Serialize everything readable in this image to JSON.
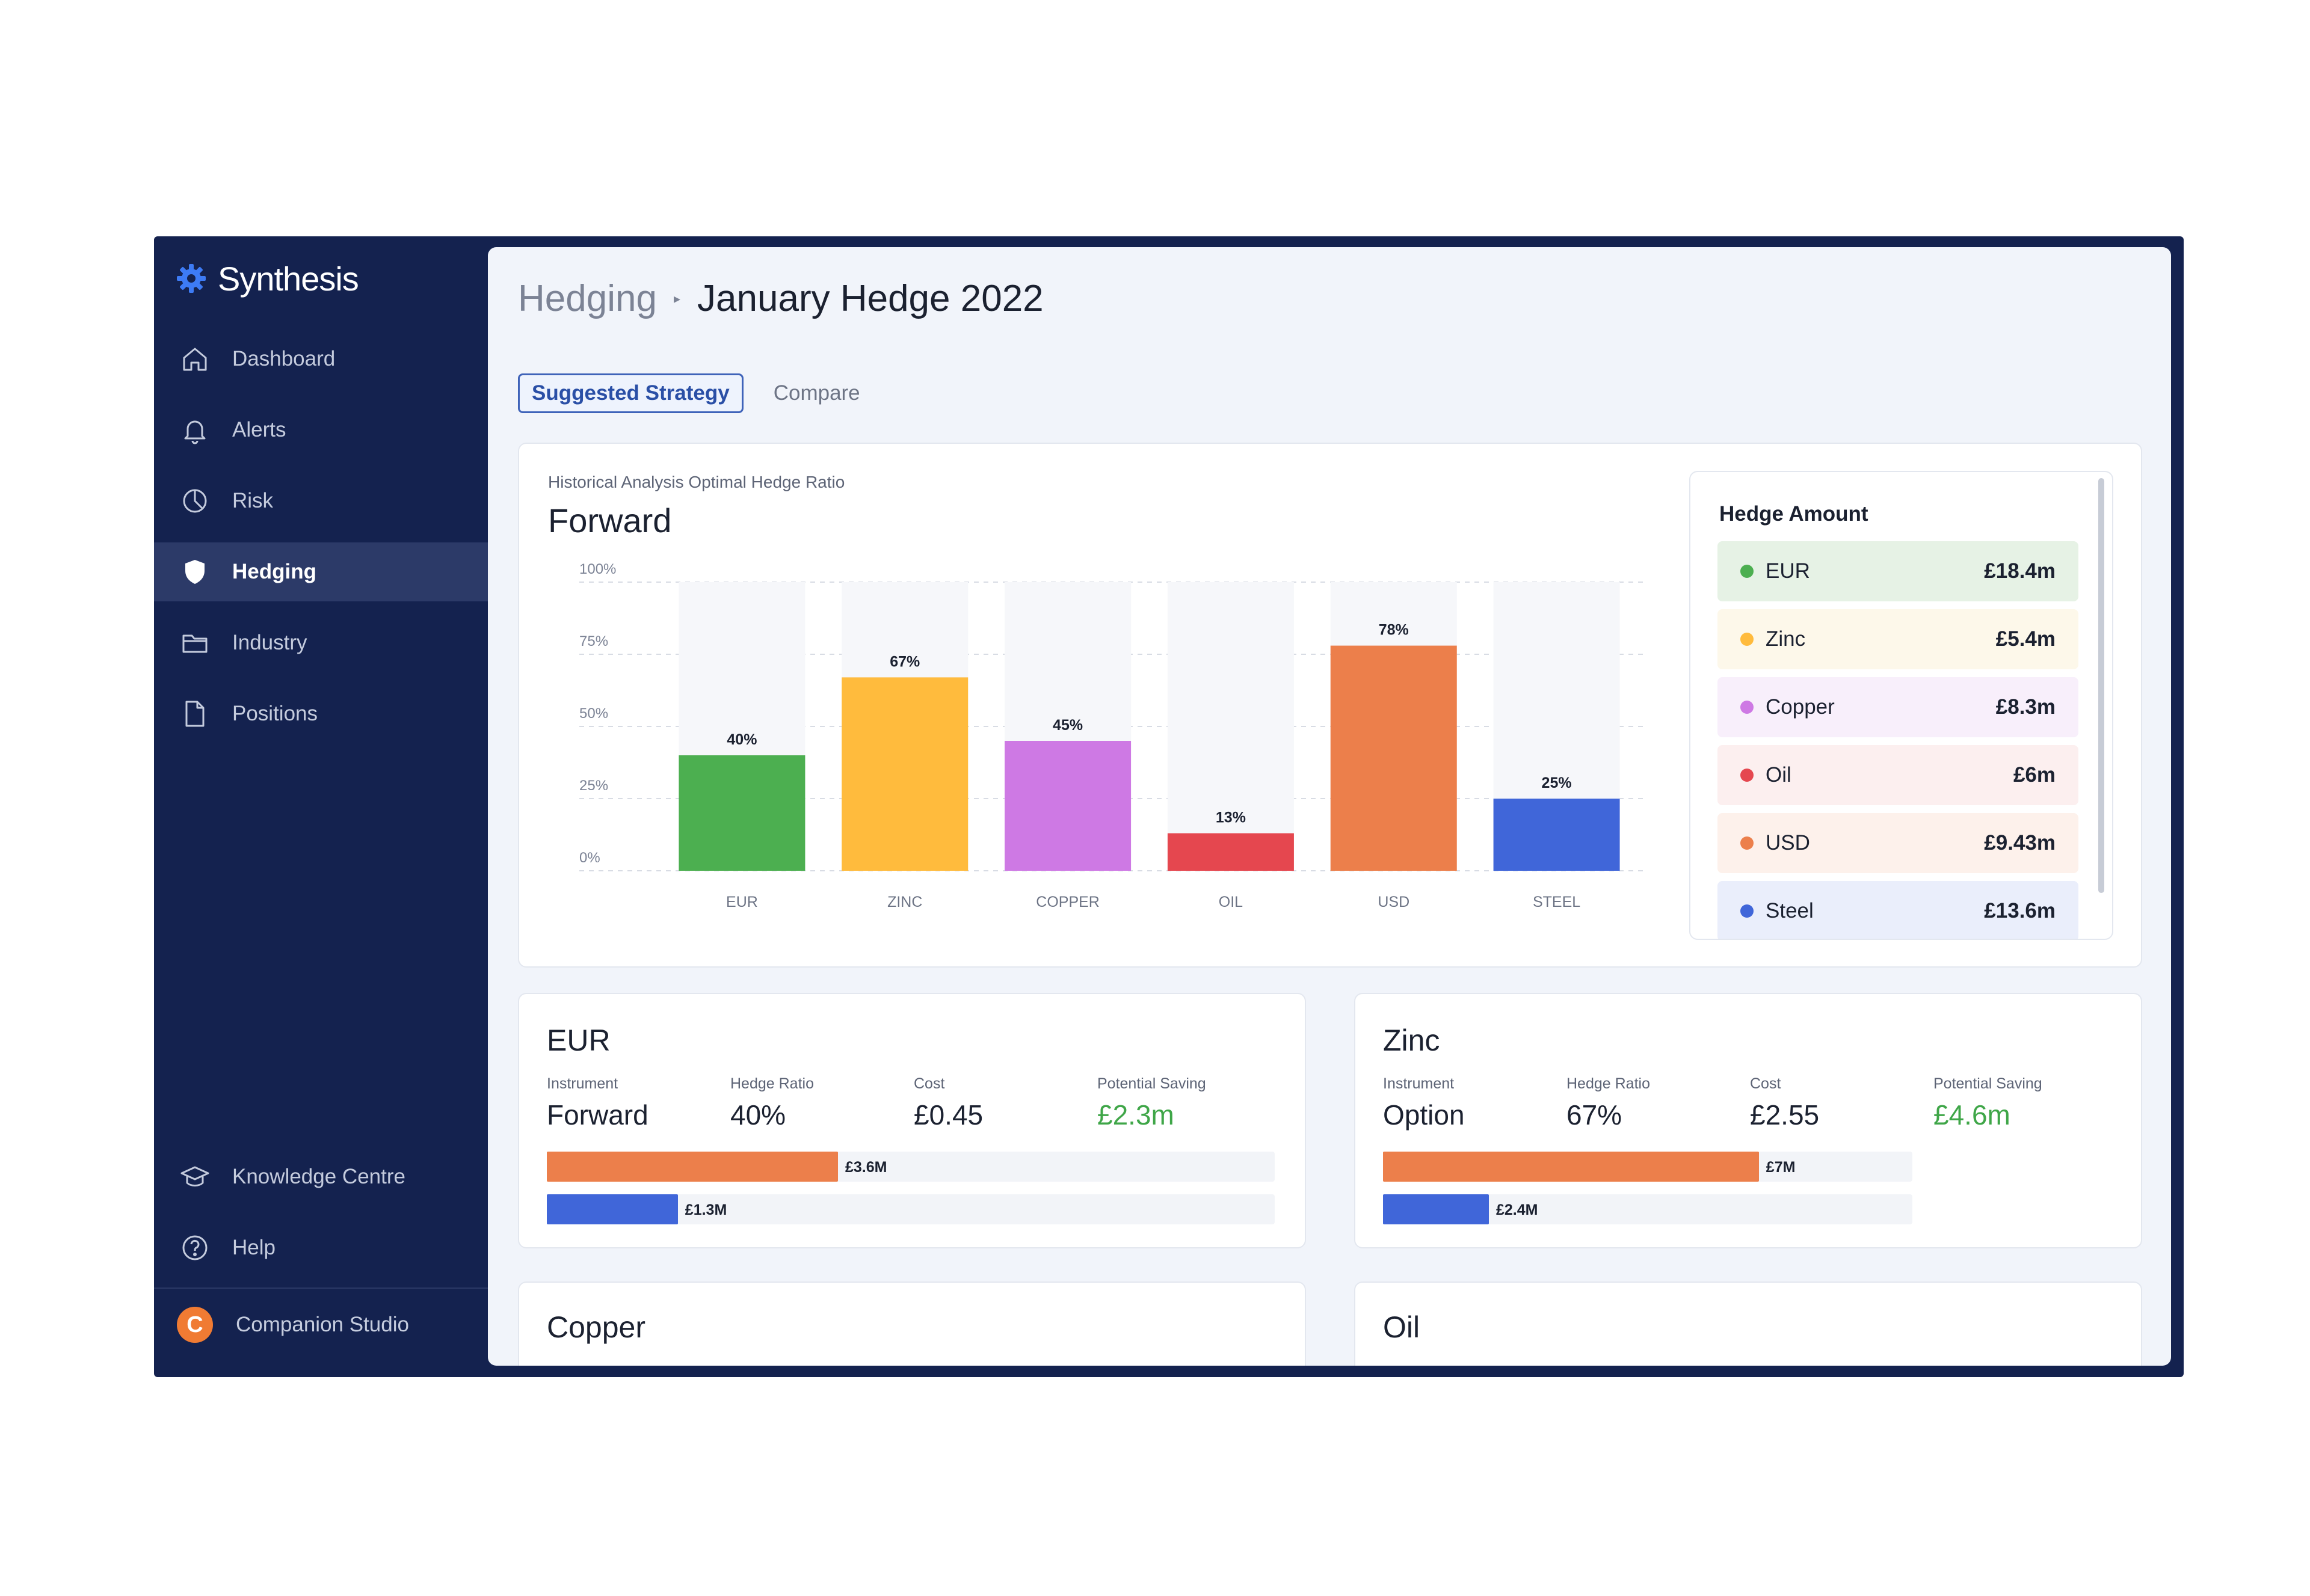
{
  "app": {
    "name": "Synthesis"
  },
  "sidebar": {
    "items": [
      {
        "label": "Dashboard",
        "icon": "home-icon"
      },
      {
        "label": "Alerts",
        "icon": "bell-icon"
      },
      {
        "label": "Risk",
        "icon": "pie-chart-icon"
      },
      {
        "label": "Hedging",
        "icon": "shield-icon",
        "active": true
      },
      {
        "label": "Industry",
        "icon": "folder-icon"
      },
      {
        "label": "Positions",
        "icon": "document-icon"
      }
    ],
    "bottom_items": [
      {
        "label": "Knowledge Centre",
        "icon": "graduation-cap-icon"
      },
      {
        "label": "Help",
        "icon": "help-icon"
      }
    ],
    "workspace": {
      "label": "Companion Studio",
      "initial": "C"
    }
  },
  "header": {
    "breadcrumb_parent": "Hedging",
    "breadcrumb_separator": "▸",
    "title": "January Hedge 2022"
  },
  "tabs": [
    {
      "label": "Suggested Strategy",
      "active": true
    },
    {
      "label": "Compare",
      "active": false
    }
  ],
  "chart_card": {
    "subtitle": "Historical Analysis Optimal Hedge Ratio",
    "title": "Forward"
  },
  "chart_data": {
    "type": "bar",
    "title": "Forward",
    "subtitle": "Historical Analysis Optimal Hedge Ratio",
    "categories": [
      "EUR",
      "ZINC",
      "COPPER",
      "OIL",
      "USD",
      "STEEL"
    ],
    "values": [
      40,
      67,
      45,
      13,
      78,
      25
    ],
    "value_labels": [
      "40%",
      "67%",
      "45%",
      "13%",
      "78%",
      "25%"
    ],
    "colors": [
      "#4caf50",
      "#ffbb3d",
      "#ce79e4",
      "#e5474f",
      "#ec7f4b",
      "#4066d9"
    ],
    "yticks": [
      "0%",
      "25%",
      "50%",
      "75%",
      "100%"
    ],
    "ylim": [
      0,
      100
    ],
    "grid": true
  },
  "hedge_amount": {
    "title": "Hedge Amount",
    "rows": [
      {
        "name": "EUR",
        "value": "£18.4m",
        "color": "#4caf50",
        "bg": "#e6f2e5"
      },
      {
        "name": "Zinc",
        "value": "£5.4m",
        "color": "#ffbb3d",
        "bg": "#fdf8ea"
      },
      {
        "name": "Copper",
        "value": "£8.3m",
        "color": "#ce79e4",
        "bg": "#f8effb"
      },
      {
        "name": "Oil",
        "value": "£6m",
        "color": "#e5474f",
        "bg": "#fcefef"
      },
      {
        "name": "USD",
        "value": "£9.43m",
        "color": "#ec7f4b",
        "bg": "#fdf1eb"
      },
      {
        "name": "Steel",
        "value": "£13.6m",
        "color": "#4066d9",
        "bg": "#eaeefb"
      }
    ]
  },
  "details": [
    {
      "title": "EUR",
      "labels": {
        "instrument": "Instrument",
        "ratio": "Hedge Ratio",
        "cost": "Cost",
        "saving": "Potential Saving"
      },
      "instrument": "Forward",
      "ratio": "40%",
      "cost": "£0.45",
      "saving": "£2.3m",
      "bars": [
        {
          "label": "£3.6M",
          "fraction": 0.4,
          "color": "#ec7f4b"
        },
        {
          "label": "£1.3M",
          "fraction": 0.18,
          "color": "#4066d9"
        }
      ]
    },
    {
      "title": "Zinc",
      "labels": {
        "instrument": "Instrument",
        "ratio": "Hedge Ratio",
        "cost": "Cost",
        "saving": "Potential Saving"
      },
      "instrument": "Option",
      "ratio": "67%",
      "cost": "£2.55",
      "saving": "£4.6m",
      "bars": [
        {
          "label": "£7M",
          "fraction": 0.71,
          "color": "#ec7f4b"
        },
        {
          "label": "£2.4M",
          "fraction": 0.2,
          "color": "#4066d9"
        }
      ]
    }
  ],
  "more_cards": [
    "Copper",
    "Oil"
  ]
}
